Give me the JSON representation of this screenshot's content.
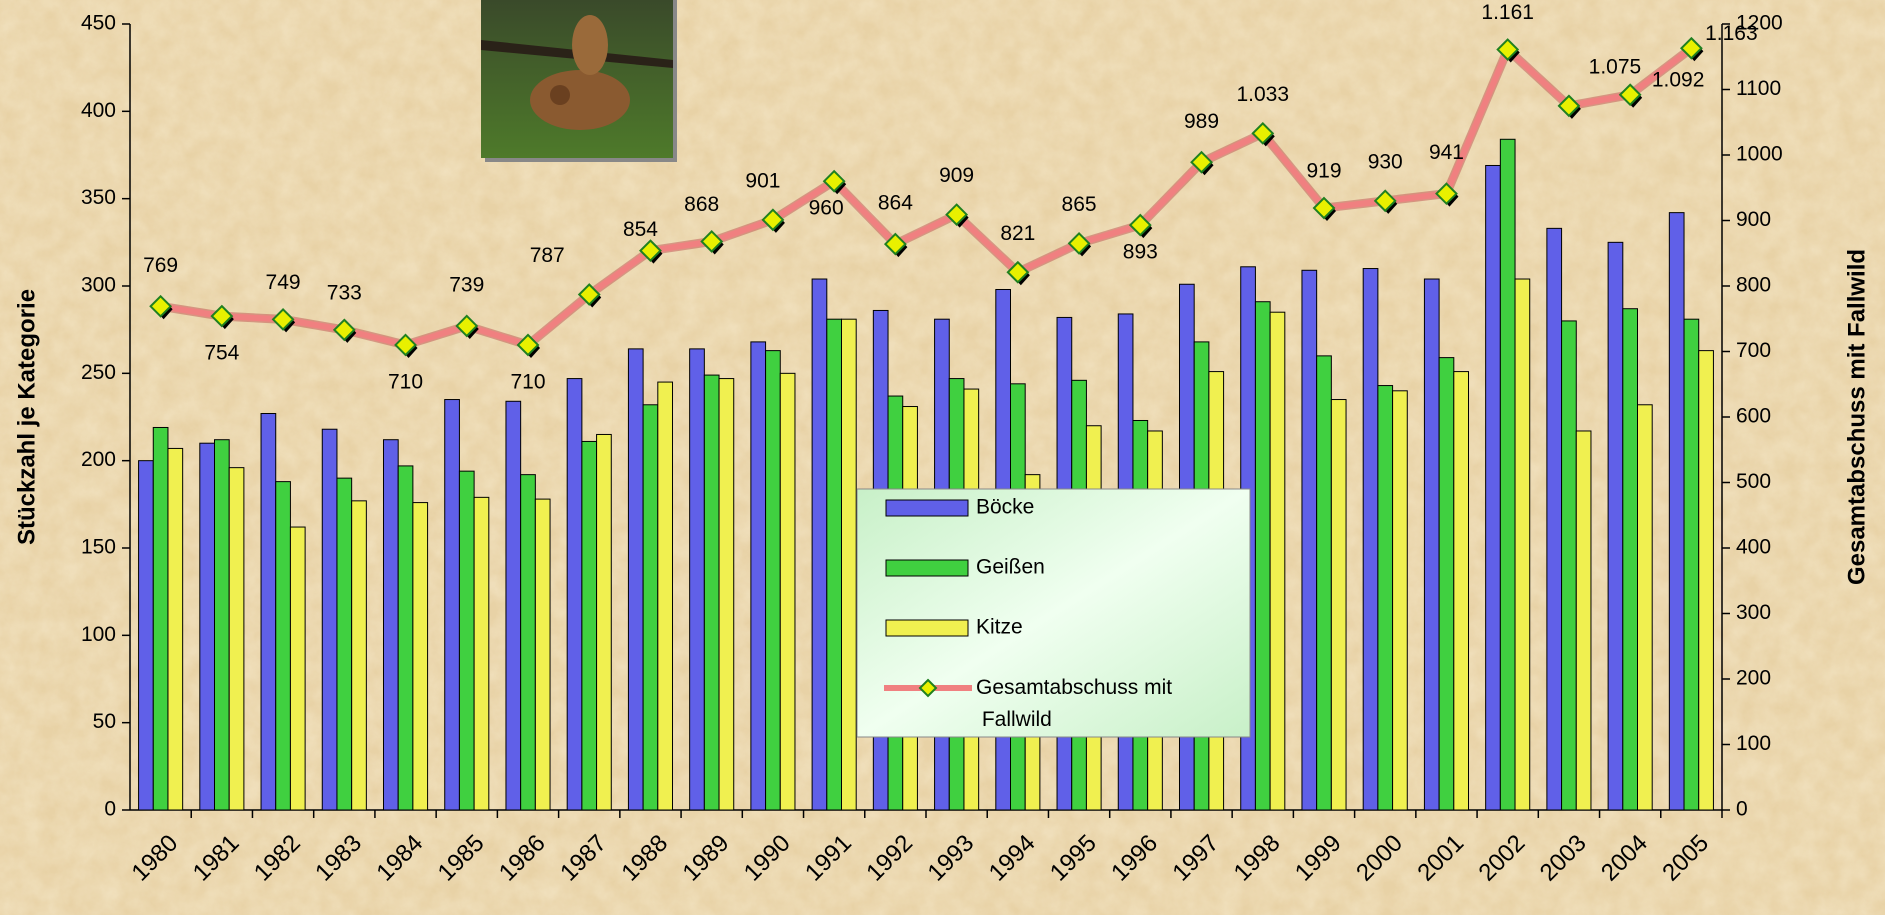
{
  "chart_data": {
    "type": "bar_line",
    "categories": [
      "1980",
      "1981",
      "1982",
      "1983",
      "1984",
      "1985",
      "1986",
      "1987",
      "1988",
      "1989",
      "1990",
      "1991",
      "1992",
      "1993",
      "1994",
      "1995",
      "1996",
      "1997",
      "1998",
      "1999",
      "2000",
      "2001",
      "2002",
      "2003",
      "2004",
      "2005"
    ],
    "ylabel": "Stückzahl je Kategorie",
    "y2label": "Gesamtabschuss mit Fallwild",
    "ylim": [
      0,
      450
    ],
    "yticks": [
      0,
      50,
      100,
      150,
      200,
      250,
      300,
      350,
      400,
      450
    ],
    "y2lim": [
      0,
      1200
    ],
    "y2ticks": [
      0,
      100,
      200,
      300,
      400,
      500,
      600,
      700,
      800,
      900,
      1000,
      1100,
      1200
    ],
    "series": [
      {
        "name": "Böcke",
        "color": "#6060e8",
        "values": [
          200,
          210,
          227,
          218,
          212,
          235,
          234,
          247,
          264,
          264,
          268,
          304,
          286,
          281,
          298,
          282,
          284,
          301,
          311,
          309,
          310,
          304,
          369,
          333,
          325,
          342
        ]
      },
      {
        "name": "Geißen",
        "color": "#40d040",
        "values": [
          219,
          212,
          188,
          190,
          197,
          194,
          192,
          211,
          232,
          249,
          263,
          281,
          237,
          247,
          244,
          246,
          223,
          268,
          291,
          260,
          243,
          259,
          384,
          280,
          287,
          281
        ]
      },
      {
        "name": "Kitze",
        "color": "#f0f050",
        "values": [
          207,
          196,
          162,
          177,
          176,
          179,
          178,
          215,
          245,
          247,
          250,
          281,
          231,
          241,
          192,
          220,
          217,
          251,
          285,
          235,
          240,
          251,
          304,
          217,
          232,
          263
        ]
      },
      {
        "name": "Gesamtabschuss mit Fallwild",
        "color": "#f08080",
        "axis": "y2",
        "type": "line",
        "values": [
          769,
          754,
          749,
          733,
          710,
          739,
          710,
          787,
          854,
          868,
          901,
          960,
          864,
          909,
          821,
          865,
          893,
          989,
          1033,
          919,
          930,
          941,
          1161,
          1075,
          1092,
          1163
        ],
        "value_labels": [
          "769",
          "754",
          "749",
          "733",
          "710",
          "739",
          "710",
          "787",
          "854",
          "868",
          "901",
          "960",
          "864",
          "909",
          "821",
          "865",
          "893",
          "989",
          "1.033",
          "919",
          "930",
          "941",
          "1.161",
          "1.075",
          "1.092",
          "1.163"
        ]
      }
    ]
  }
}
